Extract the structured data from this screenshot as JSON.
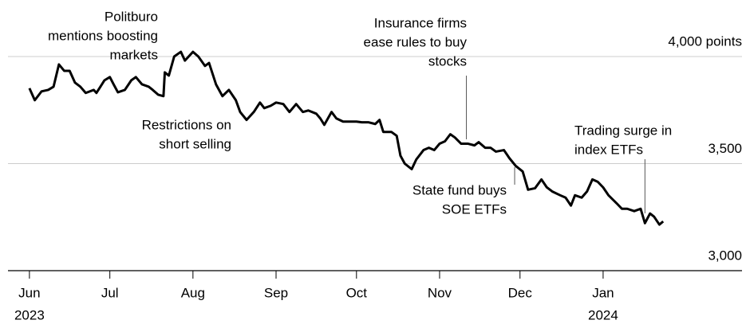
{
  "chart_data": {
    "type": "line",
    "x": [
      0,
      2,
      4.5,
      7,
      9,
      11,
      13,
      15,
      17,
      19,
      21,
      24,
      25,
      28,
      30,
      31.4,
      33,
      35.6,
      38,
      39.7,
      42,
      44.5,
      46,
      48,
      50,
      50.5,
      52,
      54,
      56.5,
      58,
      61,
      63,
      65.5,
      67,
      69.6,
      72,
      74.4,
      77,
      78.6,
      81,
      83.7,
      86,
      87.6,
      90,
      92,
      94.7,
      97,
      99.5,
      102,
      104,
      107,
      108.5,
      110,
      112.7,
      114.5,
      117,
      119,
      122,
      124,
      126.4,
      129,
      130.6,
      132,
      135,
      137,
      138.4,
      140,
      142.6,
      144.3,
      147,
      149,
      151,
      153,
      155,
      157,
      158.7,
      161,
      163.5,
      166,
      167.6,
      170,
      172,
      174,
      177,
      179,
      181.4,
      184,
      186,
      188.6,
      191,
      193,
      195,
      198,
      200,
      202,
      203.5,
      206,
      208,
      210,
      212,
      214,
      216,
      219,
      221,
      223,
      225.6,
      228,
      229.6,
      231.5,
      233,
      235,
      236.4
    ],
    "series": [
      {
        "name": null,
        "color": "#000000",
        "values": [
          3852,
          3796,
          3837,
          3844,
          3859,
          3963,
          3933,
          3933,
          3878,
          3859,
          3830,
          3844,
          3830,
          3889,
          3904,
          3870,
          3833,
          3844,
          3889,
          3904,
          3870,
          3859,
          3844,
          3822,
          3815,
          3926,
          3911,
          4000,
          4022,
          3981,
          4022,
          4000,
          3956,
          3970,
          3870,
          3815,
          3844,
          3796,
          3741,
          3704,
          3741,
          3785,
          3759,
          3770,
          3785,
          3778,
          3741,
          3778,
          3741,
          3748,
          3733,
          3711,
          3681,
          3741,
          3711,
          3696,
          3696,
          3696,
          3693,
          3693,
          3685,
          3704,
          3648,
          3648,
          3630,
          3537,
          3500,
          3474,
          3519,
          3563,
          3574,
          3563,
          3593,
          3604,
          3637,
          3622,
          3593,
          3593,
          3585,
          3600,
          3574,
          3574,
          3556,
          3563,
          3526,
          3489,
          3463,
          3378,
          3385,
          3426,
          3389,
          3370,
          3352,
          3341,
          3304,
          3352,
          3341,
          3370,
          3426,
          3415,
          3389,
          3352,
          3315,
          3289,
          3289,
          3278,
          3289,
          3222,
          3267,
          3252,
          3215,
          3230
        ]
      }
    ],
    "xlim": [
      -8,
      242
    ],
    "xticks": [
      {
        "value": 0,
        "label": "Jun"
      },
      {
        "value": 30,
        "label": "Jul"
      },
      {
        "value": 61,
        "label": "Aug"
      },
      {
        "value": 92,
        "label": "Sep"
      },
      {
        "value": 122,
        "label": "Oct"
      },
      {
        "value": 153,
        "label": "Nov"
      },
      {
        "value": 183,
        "label": "Dec"
      },
      {
        "value": 214,
        "label": "Jan"
      }
    ],
    "year_labels": [
      {
        "value": 0,
        "label": "2023"
      },
      {
        "value": 214,
        "label": "2024"
      }
    ],
    "ylim": [
      3000,
      4000
    ],
    "yticks": [
      {
        "value": 3000,
        "label": "3,000"
      },
      {
        "value": 3500,
        "label": "3,500"
      },
      {
        "value": 4000,
        "label": "4,000 points"
      }
    ],
    "grid": true,
    "annotations": [
      {
        "lines": [
          "Politburo",
          "mentions boosting",
          "markets"
        ],
        "x": 50
      },
      {
        "lines": [
          "Restrictions on",
          "short selling"
        ],
        "x": 86
      },
      {
        "lines": [
          "Insurance firms",
          "ease rules to buy",
          "stocks"
        ],
        "x": 163
      },
      {
        "lines": [
          "State fund buys",
          "SOE ETFs"
        ],
        "x": 181
      },
      {
        "lines": [
          "Trading surge in",
          "index ETFs"
        ],
        "x": 229.6
      }
    ]
  }
}
